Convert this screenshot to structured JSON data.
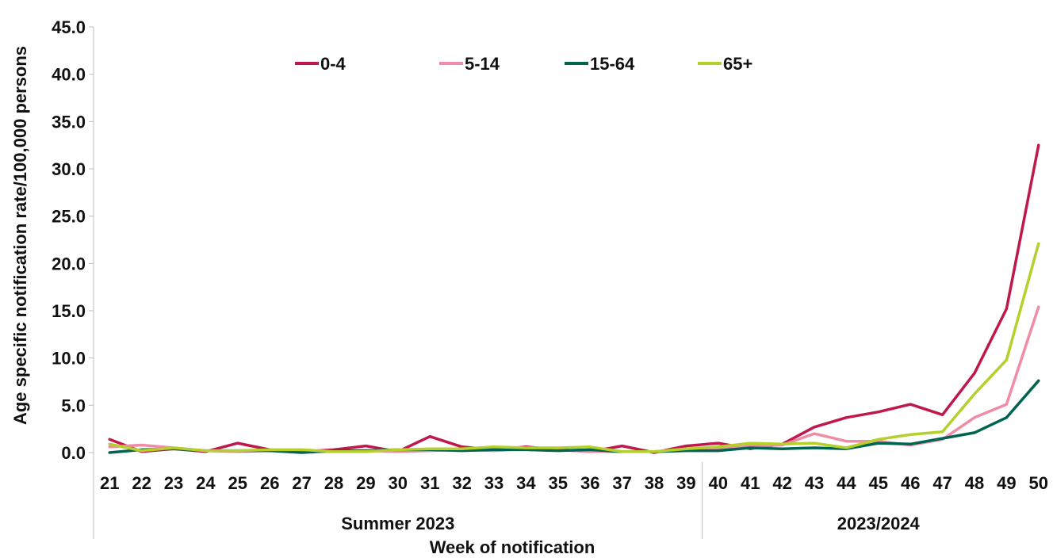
{
  "chart_data": {
    "type": "line",
    "title": "",
    "xlabel": "Week of notification",
    "ylabel": "Age  specific notification  rate/100,000 persons",
    "ylim": [
      0,
      45
    ],
    "yticks": [
      "0.0",
      "5.0",
      "10.0",
      "15.0",
      "20.0",
      "25.0",
      "30.0",
      "35.0",
      "40.0",
      "45.0"
    ],
    "ytick_values": [
      0,
      5,
      10,
      15,
      20,
      25,
      30,
      35,
      40,
      45
    ],
    "grid": false,
    "legend_position": "top",
    "categories": [
      "21",
      "22",
      "23",
      "24",
      "25",
      "26",
      "27",
      "28",
      "29",
      "30",
      "31",
      "32",
      "33",
      "34",
      "35",
      "36",
      "37",
      "38",
      "39",
      "40",
      "41",
      "42",
      "43",
      "44",
      "45",
      "46",
      "47",
      "48",
      "49",
      "50"
    ],
    "groups": [
      {
        "label": "Summer 2023",
        "from": "21",
        "to": "39"
      },
      {
        "label": "2023/2024",
        "from": "40",
        "to": "50"
      }
    ],
    "series": [
      {
        "name": "0-4",
        "color": "#c0184a",
        "values": [
          1.4,
          0.1,
          0.4,
          0.1,
          1.0,
          0.3,
          0.1,
          0.3,
          0.7,
          0.1,
          1.7,
          0.6,
          0.3,
          0.6,
          0.3,
          0.1,
          0.7,
          0.0,
          0.7,
          1.0,
          0.4,
          0.9,
          2.7,
          3.7,
          4.3,
          5.1,
          4.0,
          8.4,
          15.2,
          32.5
        ]
      },
      {
        "name": "5-14",
        "color": "#f08ca8",
        "values": [
          0.6,
          0.8,
          0.5,
          0.2,
          0.1,
          0.2,
          0.1,
          0.1,
          0.2,
          0.1,
          0.2,
          0.3,
          0.2,
          0.4,
          0.3,
          0.1,
          0.1,
          0.1,
          0.2,
          0.4,
          0.7,
          0.8,
          2.0,
          1.2,
          1.2,
          0.8,
          1.4,
          3.7,
          5.1,
          15.4
        ]
      },
      {
        "name": "15-64",
        "color": "#006450",
        "values": [
          0.0,
          0.3,
          0.4,
          0.2,
          0.2,
          0.2,
          0.0,
          0.2,
          0.2,
          0.3,
          0.3,
          0.2,
          0.3,
          0.3,
          0.2,
          0.3,
          0.1,
          0.1,
          0.2,
          0.2,
          0.5,
          0.4,
          0.5,
          0.4,
          1.0,
          0.9,
          1.5,
          2.1,
          3.7,
          7.6
        ]
      },
      {
        "name": "65+",
        "color": "#b5cf2b",
        "values": [
          0.9,
          0.2,
          0.5,
          0.2,
          0.2,
          0.3,
          0.3,
          0.1,
          0.1,
          0.3,
          0.4,
          0.4,
          0.6,
          0.5,
          0.5,
          0.6,
          0.1,
          0.1,
          0.4,
          0.6,
          1.0,
          0.9,
          1.0,
          0.5,
          1.4,
          1.9,
          2.2,
          6.2,
          9.8,
          22.1
        ]
      }
    ]
  }
}
